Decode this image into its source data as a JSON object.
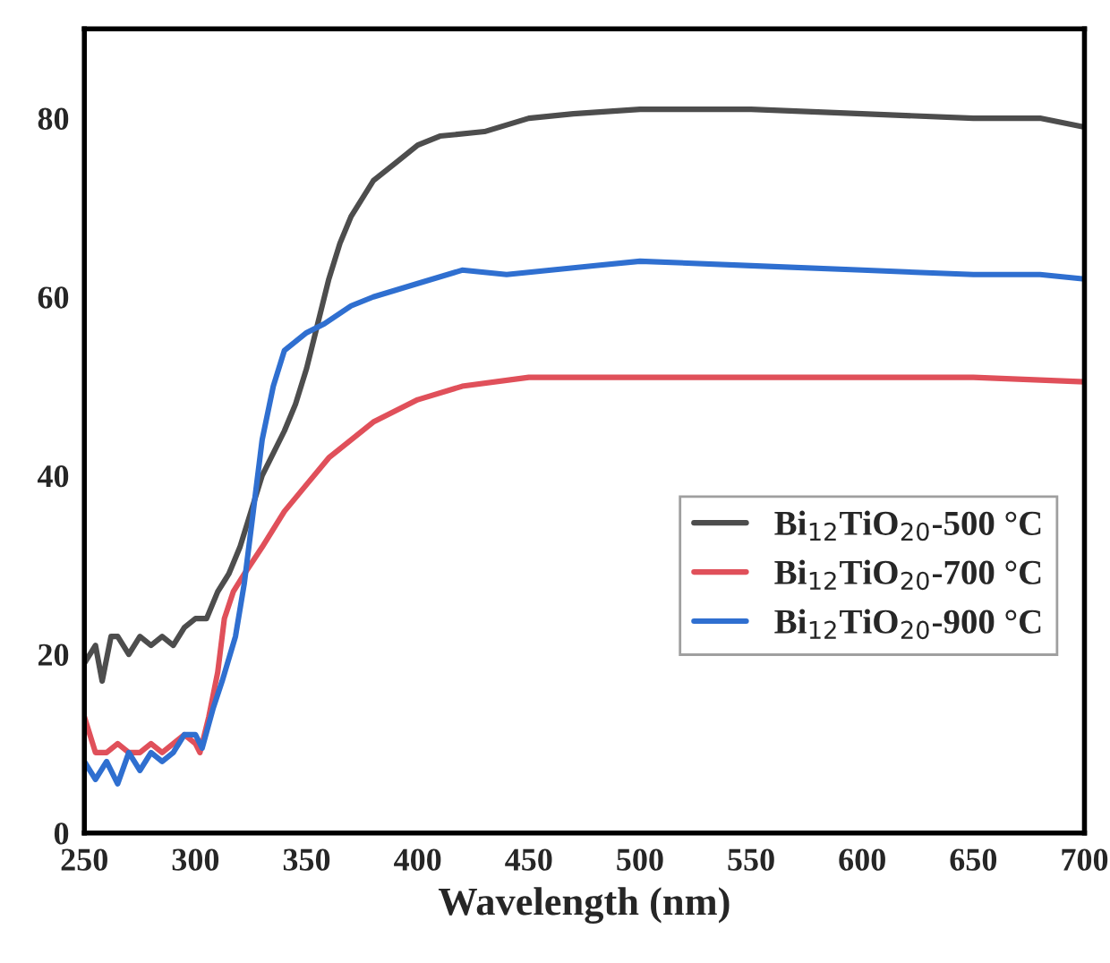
{
  "chart_data": {
    "type": "line",
    "xlabel": "Wavelength (nm)",
    "xlim": [
      250,
      700
    ],
    "xticks": [
      250,
      300,
      350,
      400,
      450,
      500,
      550,
      600,
      650,
      700
    ],
    "ylim": [
      0,
      90
    ],
    "yticks": [
      0,
      20,
      40,
      60,
      80
    ],
    "grid": false,
    "legend": "right",
    "marker": "none",
    "line_style": "solid",
    "series": [
      {
        "name": "Bi$_{12}$TiO$_{20}$-500 °C",
        "color": "#4d4d4d",
        "x": [
          250,
          255,
          258,
          262,
          265,
          270,
          275,
          280,
          285,
          290,
          295,
          300,
          305,
          310,
          315,
          320,
          325,
          330,
          340,
          345,
          350,
          355,
          360,
          365,
          370,
          380,
          390,
          400,
          410,
          430,
          450,
          470,
          500,
          550,
          600,
          650,
          680,
          690,
          700
        ],
        "values": [
          19,
          21,
          17,
          22,
          22,
          20,
          22,
          21,
          22,
          21,
          23,
          24,
          24,
          27,
          29,
          32,
          36,
          40,
          45,
          48,
          52,
          57,
          62,
          66,
          69,
          73,
          75,
          77,
          78,
          78.5,
          80,
          80.5,
          81,
          81,
          80.5,
          80,
          80,
          79.5,
          79
        ]
      },
      {
        "name": "Bi$_{12}$TiO$_{20}$-700 °C",
        "color": "#e0505a",
        "x": [
          250,
          255,
          260,
          265,
          270,
          275,
          280,
          285,
          290,
          295,
          300,
          302,
          306,
          310,
          313,
          317,
          322,
          330,
          340,
          350,
          360,
          380,
          400,
          420,
          450,
          500,
          600,
          650,
          700
        ],
        "values": [
          13,
          9,
          9,
          10,
          9,
          9,
          10,
          9,
          10,
          11,
          10,
          9,
          13,
          18,
          24,
          27,
          29,
          32,
          36,
          39,
          42,
          46,
          48.5,
          50,
          51,
          51,
          51,
          51,
          50.5
        ]
      },
      {
        "name": "Bi$_{12}$TiO$_{20}$-900 °C",
        "color": "#2f6fd0",
        "x": [
          250,
          255,
          260,
          265,
          270,
          275,
          280,
          285,
          290,
          295,
          300,
          303,
          308,
          312,
          318,
          322,
          326,
          330,
          335,
          340,
          350,
          358,
          370,
          380,
          400,
          420,
          440,
          460,
          480,
          500,
          550,
          600,
          650,
          680,
          700
        ],
        "values": [
          8,
          6,
          8,
          5.5,
          9,
          7,
          9,
          8,
          9,
          11,
          11,
          9.5,
          14,
          17,
          22,
          28,
          36,
          44,
          50,
          54,
          56,
          57,
          59,
          60,
          61.5,
          63,
          62.5,
          63,
          63.5,
          64,
          63.5,
          63,
          62.5,
          62.5,
          62
        ]
      }
    ]
  }
}
